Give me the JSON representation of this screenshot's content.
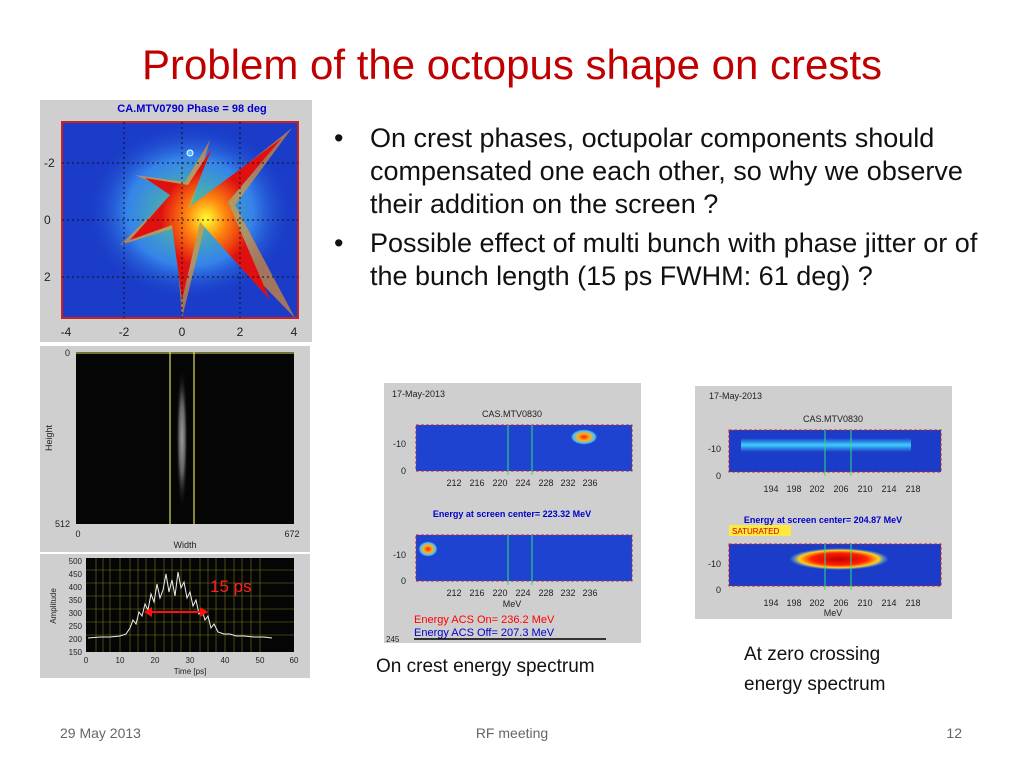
{
  "slide": {
    "title": "Problem of the octopus shape on crests",
    "bullets": [
      "On crest phases, octupolar components should compensated one each other, so why we observe their addition on the screen ?",
      "Possible effect of multi bunch with phase jitter or of the bunch length (15 ps FWHM: 61 deg) ?"
    ],
    "footer": {
      "date": "29 May 2013",
      "center": "RF meeting",
      "page": "12"
    }
  },
  "octopus_image": {
    "title": "CA.MTV0790 Phase = 98 deg",
    "y_ticks": [
      "-2",
      "0",
      "2"
    ],
    "x_ticks": [
      "-4",
      "-2",
      "0",
      "2",
      "4"
    ]
  },
  "streak_image": {
    "y_label": "Height",
    "x_label": "Width",
    "y_ticks": [
      "0",
      "512"
    ],
    "x_ticks": [
      "0",
      "672"
    ]
  },
  "profile_plot": {
    "y_label": "Amplitude",
    "x_label": "Time [ps]",
    "y_ticks": [
      "500",
      "450",
      "400",
      "350",
      "300",
      "250",
      "200",
      "150"
    ],
    "x_ticks": [
      "0",
      "10",
      "20",
      "30",
      "40",
      "50",
      "60"
    ],
    "annotation": "15 ps"
  },
  "oncrest_panel": {
    "date": "17-May-2013",
    "title": "CAS.MTV0830",
    "y_ticks": [
      "-10",
      "0"
    ],
    "x_ticks": [
      "212",
      "216",
      "220",
      "224",
      "228",
      "232",
      "236"
    ],
    "center_label": "Energy at screen center= 223.32 MeV",
    "unit": "MeV",
    "acs_on": "Energy ACS On=  236.2 MeV",
    "acs_off": "Energy ACS Off=  207.3 MeV",
    "corner": "245",
    "caption": "On crest energy spectrum"
  },
  "zerocross_panel": {
    "date": "17-May-2013",
    "title": "CAS.MTV0830",
    "y_ticks": [
      "-10",
      "0"
    ],
    "x_ticks": [
      "194",
      "198",
      "202",
      "206",
      "210",
      "214",
      "218"
    ],
    "center_label": "Energy at screen center= 204.87 MeV",
    "saturated": "SATURATED",
    "unit": "MeV",
    "caption": "At zero crossing energy spectrum"
  },
  "colors": {
    "title_red": "#c00000",
    "heatmap_blue": "#1a3cc8",
    "label_blue": "#0000cc",
    "acs_red": "#ff0000"
  }
}
